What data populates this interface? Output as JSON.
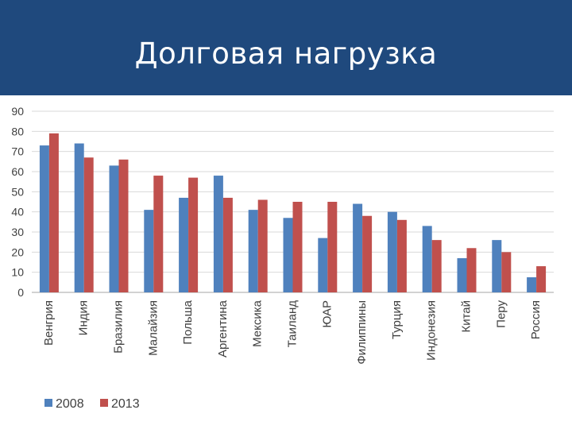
{
  "slide": {
    "title": "Долговая нагрузка"
  },
  "colors": {
    "header_bg": "#1f497d",
    "series_2008": "#4f81bd",
    "series_2013": "#c0504d",
    "grid": "#d9d9d9"
  },
  "chart_data": {
    "type": "bar",
    "title": "",
    "xlabel": "",
    "ylabel": "",
    "ylim": [
      0,
      90
    ],
    "yticks": [
      0,
      10,
      20,
      30,
      40,
      50,
      60,
      70,
      80,
      90
    ],
    "grid": true,
    "legend_position": "bottom-left",
    "categories": [
      "Венгрия",
      "Индия",
      "Бразилия",
      "Малайзия",
      "Польша",
      "Аргентина",
      "Мексика",
      "Таиланд",
      "ЮАР",
      "Филиппины",
      "Турция",
      "Индонезия",
      "Китай",
      "Перу",
      "Россия"
    ],
    "series": [
      {
        "name": "2008",
        "color": "#4f81bd",
        "values": [
          73,
          74,
          63,
          41,
          47,
          58,
          41,
          37,
          27,
          44,
          40,
          33,
          17,
          26,
          7.5
        ]
      },
      {
        "name": "2013",
        "color": "#c0504d",
        "values": [
          79,
          67,
          66,
          58,
          57,
          47,
          46,
          45,
          45,
          38,
          36,
          26,
          22,
          20,
          13
        ]
      }
    ]
  }
}
